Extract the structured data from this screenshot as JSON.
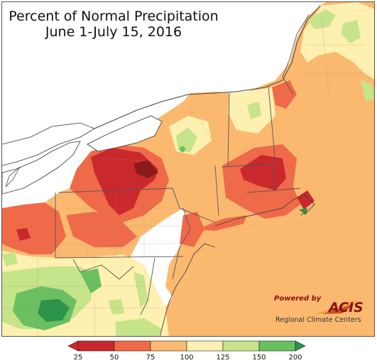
{
  "title": {
    "line1": "Percent of Normal Precipitation",
    "line2": "June 1-July 15, 2016"
  },
  "logo": {
    "powered_by": "Powered by",
    "brand": "ACIS",
    "subtitle": "Regional Climate Centers"
  },
  "legend": {
    "colors": [
      "#c9282d",
      "#ef6a48",
      "#fbb970",
      "#fdf0b0",
      "#c6e48a",
      "#6abf61",
      "#2b9448"
    ],
    "ticks": [
      "25",
      "50",
      "75",
      "100",
      "125",
      "150",
      "200"
    ]
  },
  "colors": {
    "background": "#ffffff",
    "lake": "#ffffff",
    "border": "#555555",
    "county_line": "#b08a6a"
  }
}
